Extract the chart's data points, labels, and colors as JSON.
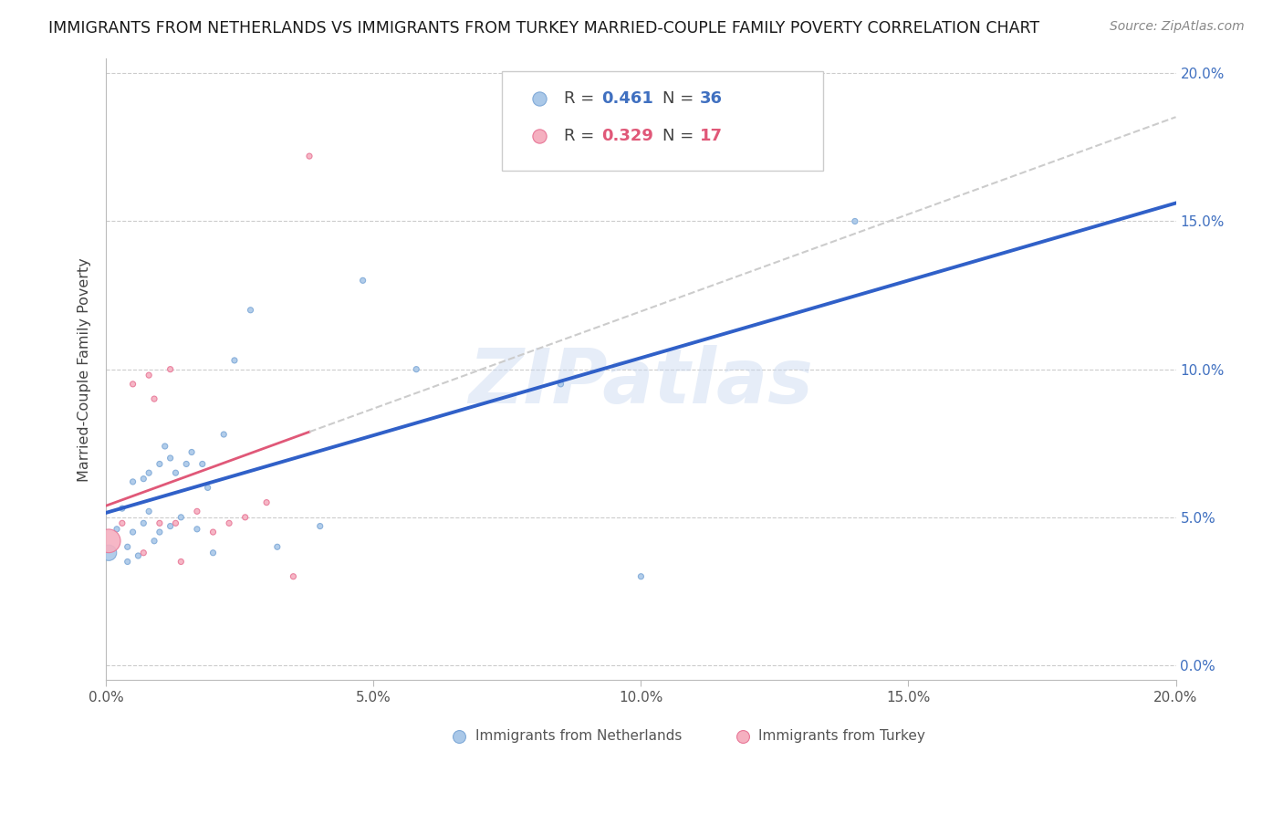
{
  "title": "IMMIGRANTS FROM NETHERLANDS VS IMMIGRANTS FROM TURKEY MARRIED-COUPLE FAMILY POVERTY CORRELATION CHART",
  "source": "Source: ZipAtlas.com",
  "ylabel": "Married-Couple Family Poverty",
  "xlim": [
    0.0,
    0.2
  ],
  "ylim": [
    -0.005,
    0.205
  ],
  "netherlands_color": "#aac8e8",
  "turkey_color": "#f5b0c0",
  "netherlands_edge": "#80aad8",
  "turkey_edge": "#e87898",
  "trendline_nl_color": "#3060c8",
  "trendline_tr_color": "#e05878",
  "trendline_nl_ext_color": "#b0b0b0",
  "watermark": "ZIPatlas",
  "nl_x": [
    0.0005,
    0.002,
    0.003,
    0.004,
    0.004,
    0.005,
    0.005,
    0.006,
    0.007,
    0.007,
    0.008,
    0.008,
    0.009,
    0.01,
    0.01,
    0.011,
    0.012,
    0.012,
    0.013,
    0.014,
    0.015,
    0.016,
    0.017,
    0.018,
    0.019,
    0.02,
    0.022,
    0.024,
    0.027,
    0.032,
    0.04,
    0.048,
    0.058,
    0.085,
    0.1,
    0.14
  ],
  "nl_y": [
    0.038,
    0.046,
    0.053,
    0.04,
    0.035,
    0.062,
    0.045,
    0.037,
    0.063,
    0.048,
    0.065,
    0.052,
    0.042,
    0.068,
    0.045,
    0.074,
    0.07,
    0.047,
    0.065,
    0.05,
    0.068,
    0.072,
    0.046,
    0.068,
    0.06,
    0.038,
    0.078,
    0.103,
    0.12,
    0.04,
    0.047,
    0.13,
    0.1,
    0.095,
    0.03,
    0.15
  ],
  "nl_size": [
    400,
    50,
    50,
    50,
    50,
    50,
    50,
    50,
    50,
    50,
    50,
    50,
    50,
    50,
    50,
    50,
    50,
    50,
    50,
    50,
    50,
    50,
    50,
    50,
    50,
    50,
    50,
    50,
    50,
    50,
    50,
    50,
    50,
    50,
    50,
    50
  ],
  "tr_x": [
    0.0005,
    0.003,
    0.005,
    0.007,
    0.008,
    0.009,
    0.01,
    0.012,
    0.013,
    0.014,
    0.017,
    0.02,
    0.023,
    0.026,
    0.03,
    0.035,
    0.038
  ],
  "tr_y": [
    0.042,
    0.048,
    0.095,
    0.038,
    0.098,
    0.09,
    0.048,
    0.1,
    0.048,
    0.035,
    0.052,
    0.045,
    0.048,
    0.05,
    0.055,
    0.03,
    0.172
  ],
  "tr_size": [
    900,
    50,
    50,
    50,
    50,
    50,
    50,
    50,
    50,
    50,
    50,
    50,
    50,
    50,
    50,
    50,
    50
  ],
  "legend_r1": "0.461",
  "legend_n1": "36",
  "legend_r2": "0.329",
  "legend_n2": "17"
}
